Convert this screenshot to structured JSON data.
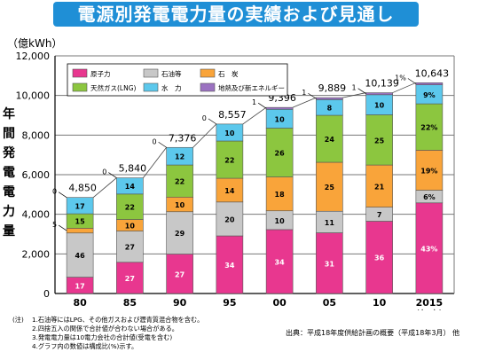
{
  "title": "電源別発電電力量の実績および見通し",
  "unit": "（億kWh）",
  "y_axis_title": [
    "年",
    "間",
    "発",
    "電",
    "電",
    "力",
    "量"
  ],
  "x_axis_unit": "（年度）",
  "notes_head": "(注)",
  "notes": [
    "1.石油等にはLPG、その他ガスおよび瀝青質混合物を含む。",
    "2.四捨五入の関係で合計値が合わない場合がある。",
    "3.発電電力量は10電力会社の合計値(受電を含む)",
    "4.グラフ内の数値は構成比(%)示す。"
  ],
  "source": "出典：平成18年度供給計画の概要（平成18年3月） 他",
  "chart_data": {
    "type": "bar",
    "stacked": true,
    "categories": [
      "80",
      "85",
      "90",
      "95",
      "00",
      "05",
      "10",
      "2015"
    ],
    "totals": [
      4850,
      5840,
      7376,
      8557,
      9396,
      9889,
      10139,
      10643
    ],
    "total_labels": [
      "4,850",
      "5,840",
      "7,376",
      "8,557",
      "9,396",
      "9,889",
      "10,139",
      "10,643"
    ],
    "ylim": [
      0,
      12000
    ],
    "yticks": [
      0,
      2000,
      4000,
      6000,
      8000,
      10000,
      12000
    ],
    "ytick_labels": [
      "0",
      "2,000",
      "4,000",
      "6,000",
      "8,000",
      "10,000",
      "12,000"
    ],
    "grid": true,
    "legend_position": "top-left inside",
    "series": [
      {
        "name": "原子力",
        "color": "#e8378f",
        "shares": [
          17,
          27,
          27,
          34,
          34,
          31,
          36,
          43
        ],
        "labels": [
          "17",
          "27",
          "27",
          "34",
          "34",
          "31",
          "36",
          "43%"
        ]
      },
      {
        "name": "石油等",
        "color": "#c8c8c8",
        "shares": [
          46,
          27,
          29,
          20,
          10,
          11,
          7,
          6
        ],
        "labels": [
          "46",
          "27",
          "29",
          "20",
          "10",
          "11",
          "7",
          "6%"
        ]
      },
      {
        "name": "石　炭",
        "color": "#f9a43a",
        "shares": [
          5,
          10,
          10,
          14,
          18,
          25,
          21,
          19
        ],
        "labels": [
          "",
          "10",
          "10",
          "14",
          "18",
          "25",
          "21",
          "19%"
        ]
      },
      {
        "name": "天然ガス(LNG)",
        "color": "#8cc63f",
        "shares": [
          15,
          22,
          22,
          22,
          26,
          24,
          25,
          22
        ],
        "labels": [
          "15",
          "22",
          "22",
          "22",
          "26",
          "24",
          "25",
          "22%"
        ]
      },
      {
        "name": "水　力",
        "color": "#5cc8ec",
        "shares": [
          17,
          14,
          12,
          10,
          10,
          8,
          10,
          9
        ],
        "labels": [
          "17",
          "14",
          "12",
          "10",
          "10",
          "8",
          "10",
          "9%"
        ]
      },
      {
        "name": "地熱及び新エネルギー",
        "color": "#9b72c1",
        "shares": [
          0,
          0,
          0,
          0,
          1,
          1,
          1,
          1
        ],
        "labels": [
          "",
          "",
          "",
          "",
          "",
          "",
          "",
          ""
        ]
      }
    ],
    "callouts": [
      {
        "category": "80",
        "series": "石　炭",
        "text": "5"
      },
      {
        "category": "80",
        "series": "地熱及び新エネルギー",
        "text": "0"
      },
      {
        "category": "85",
        "series": "地熱及び新エネルギー",
        "text": "0"
      },
      {
        "category": "90",
        "series": "地熱及び新エネルギー",
        "text": "0"
      },
      {
        "category": "95",
        "series": "地熱及び新エネルギー",
        "text": "0"
      },
      {
        "category": "00",
        "series": "地熱及び新エネルギー",
        "text": "1"
      },
      {
        "category": "05",
        "series": "地熱及び新エネルギー",
        "text": "1"
      },
      {
        "category": "10",
        "series": "地熱及び新エネルギー",
        "text": "1"
      },
      {
        "category": "2015",
        "series": "地熱及び新エネルギー",
        "text": "1%"
      }
    ]
  }
}
